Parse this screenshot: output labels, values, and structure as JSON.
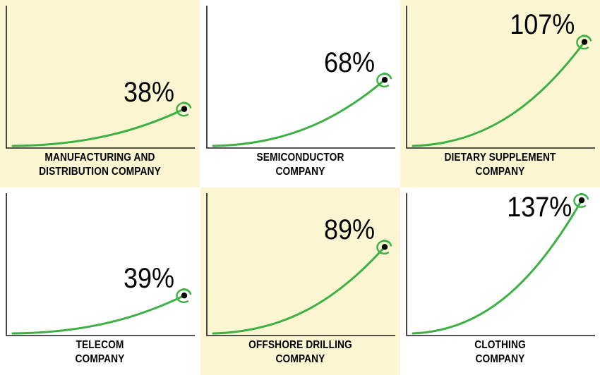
{
  "colors": {
    "highlight_background": "#fbf6d1",
    "plain_background": "#ffffff",
    "axis": "#1a1a1a",
    "curve": "#3cb043",
    "marker_ring": "#3cb043",
    "marker_dot": "#000000"
  },
  "chart_data": [
    {
      "type": "line",
      "name_lines": [
        "MANUFACTURING AND",
        "DISTRIBUTION COMPANY"
      ],
      "label": "38%",
      "value": 38,
      "highlighted": true
    },
    {
      "type": "line",
      "name_lines": [
        "SEMICONDUCTOR",
        "COMPANY"
      ],
      "label": "68%",
      "value": 68,
      "highlighted": false
    },
    {
      "type": "line",
      "name_lines": [
        "DIETARY SUPPLEMENT",
        "COMPANY"
      ],
      "label": "107%",
      "value": 107,
      "highlighted": true
    },
    {
      "type": "line",
      "name_lines": [
        "TELECOM",
        "COMPANY"
      ],
      "label": "39%",
      "value": 39,
      "highlighted": false
    },
    {
      "type": "line",
      "name_lines": [
        "OFFSHORE DRILLING",
        "COMPANY"
      ],
      "label": "89%",
      "value": 89,
      "highlighted": true
    },
    {
      "type": "line",
      "name_lines": [
        "CLOTHING",
        "COMPANY"
      ],
      "label": "137%",
      "value": 137,
      "highlighted": false
    }
  ]
}
